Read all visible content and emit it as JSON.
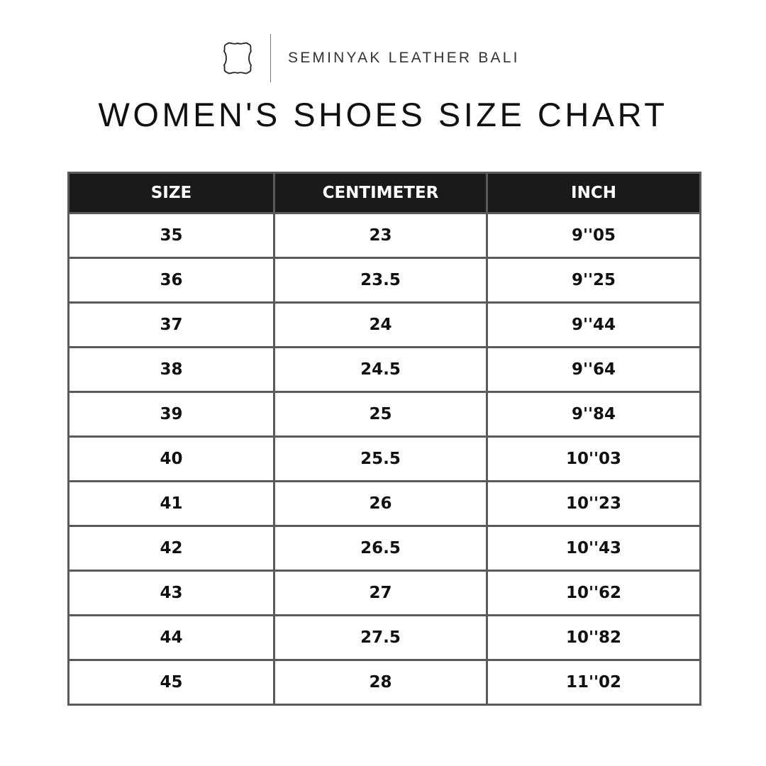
{
  "brand": {
    "name": "SEMINYAK LEATHER BALI",
    "logo_icon": "leather-hide-icon"
  },
  "title": "WOMEN'S SHOES SIZE CHART",
  "table": {
    "headers": [
      "SIZE",
      "CENTIMETER",
      "INCH"
    ],
    "rows": [
      [
        "35",
        "23",
        "9''05"
      ],
      [
        "36",
        "23.5",
        "9''25"
      ],
      [
        "37",
        "24",
        "9''44"
      ],
      [
        "38",
        "24.5",
        "9''64"
      ],
      [
        "39",
        "25",
        "9''84"
      ],
      [
        "40",
        "25.5",
        "10''03"
      ],
      [
        "41",
        "26",
        "10''23"
      ],
      [
        "42",
        "26.5",
        "10''43"
      ],
      [
        "43",
        "27",
        "10''62"
      ],
      [
        "44",
        "27.5",
        "10''82"
      ],
      [
        "45",
        "28",
        "11''02"
      ]
    ]
  }
}
